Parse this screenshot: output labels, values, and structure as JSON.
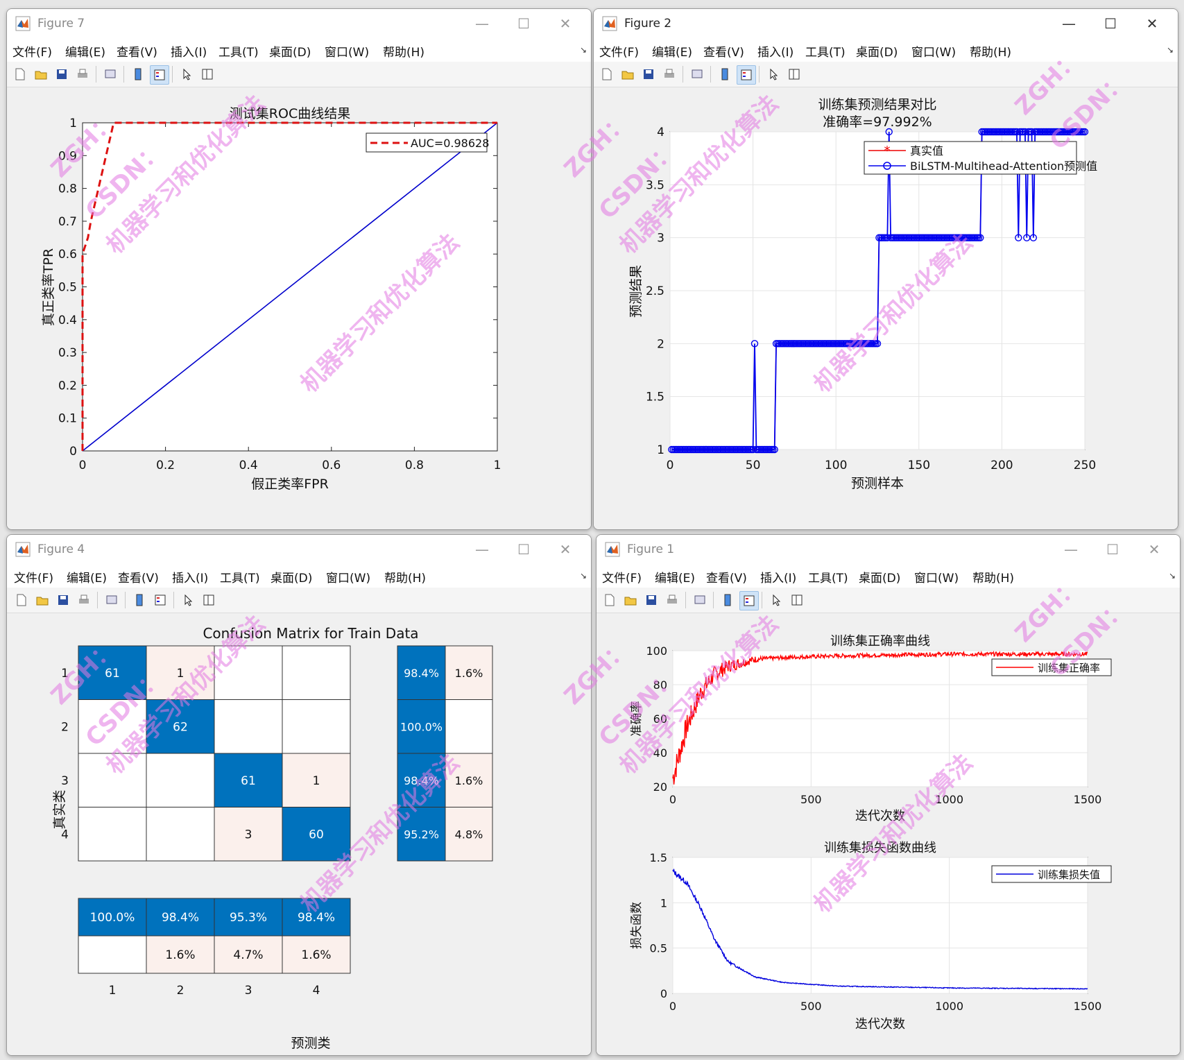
{
  "windows": {
    "fig7": {
      "title": "Figure 7",
      "menu": [
        "文件(F)",
        "编辑(E)",
        "查看(V)",
        "插入(I)",
        "工具(T)",
        "桌面(D)",
        "窗口(W)",
        "帮助(H)"
      ],
      "chart": {
        "title": "测试集ROC曲线结果",
        "xlabel": "假正类率FPR",
        "ylabel": "真正类率TPR",
        "legend": "AUC=0.98628",
        "xticks": [
          "0",
          "0.2",
          "0.4",
          "0.6",
          "0.8",
          "1"
        ],
        "yticks": [
          "0",
          "0.1",
          "0.2",
          "0.3",
          "0.4",
          "0.5",
          "0.6",
          "0.7",
          "0.8",
          "0.9",
          "1"
        ]
      }
    },
    "fig2": {
      "title": "Figure 2",
      "menu": [
        "文件(F)",
        "编辑(E)",
        "查看(V)",
        "插入(I)",
        "工具(T)",
        "桌面(D)",
        "窗口(W)",
        "帮助(H)"
      ],
      "chart": {
        "title_line1": "训练集预测结果对比",
        "title_line2": "准确率=97.992%",
        "xlabel": "预测样本",
        "ylabel": "预测结果",
        "legend": [
          "真实值",
          "BiLSTM-Multihead-Attention预测值"
        ],
        "xticks": [
          "0",
          "50",
          "100",
          "150",
          "200",
          "250"
        ],
        "yticks": [
          "1",
          "1.5",
          "2",
          "2.5",
          "3",
          "3.5",
          "4"
        ]
      }
    },
    "fig4": {
      "title": "Figure 4",
      "menu": [
        "文件(F)",
        "编辑(E)",
        "查看(V)",
        "插入(I)",
        "工具(T)",
        "桌面(D)",
        "窗口(W)",
        "帮助(H)"
      ],
      "chart": {
        "title": "Confusion Matrix for Train Data",
        "xlabel": "预测类",
        "ylabel": "真实类",
        "classes": [
          "1",
          "2",
          "3",
          "4"
        ],
        "row_summary": [
          [
            "98.4%",
            "1.6%"
          ],
          [
            "100.0%",
            ""
          ],
          [
            "98.4%",
            "1.6%"
          ],
          [
            "95.2%",
            "4.8%"
          ]
        ],
        "col_summary": [
          [
            "100.0%",
            ""
          ],
          [
            "98.4%",
            "1.6%"
          ],
          [
            "95.3%",
            "4.7%"
          ],
          [
            "98.4%",
            "1.6%"
          ]
        ]
      }
    },
    "fig1": {
      "title": "Figure 1",
      "menu": [
        "文件(F)",
        "编辑(E)",
        "查看(V)",
        "插入(I)",
        "工具(T)",
        "桌面(D)",
        "窗口(W)",
        "帮助(H)"
      ],
      "chart_top": {
        "title": "训练集正确率曲线",
        "xlabel": "迭代次数",
        "ylabel": "准确率",
        "legend": "训练集正确率",
        "xticks": [
          "0",
          "500",
          "1000",
          "1500"
        ],
        "yticks": [
          "20",
          "40",
          "60",
          "80",
          "100"
        ]
      },
      "chart_bottom": {
        "title": "训练集损失函数曲线",
        "xlabel": "迭代次数",
        "ylabel": "损失函数",
        "legend": "训练集损失值",
        "xticks": [
          "0",
          "500",
          "1000",
          "1500"
        ],
        "yticks": [
          "0",
          "0.5",
          "1",
          "1.5"
        ]
      }
    }
  },
  "colors": {
    "roc_random": "#0000cc",
    "roc_auc": "#dd1111",
    "pred": "#0000ee",
    "true": "#ee0000",
    "cm_dark": "#0072bd",
    "cm_light": "#fbf0ec",
    "acc": "#ff0000",
    "loss": "#0000dd"
  },
  "watermarks": [
    "机器学习和优化算法",
    "ZGH：",
    "CSDN："
  ],
  "chart_data": [
    {
      "type": "line",
      "title": "测试集ROC曲线结果",
      "xlabel": "假正类率FPR",
      "ylabel": "真正类率TPR",
      "xlim": [
        0,
        1
      ],
      "ylim": [
        0,
        1
      ],
      "series": [
        {
          "name": "AUC=0.98628",
          "style": "dashed",
          "x": [
            0,
            0,
            0,
            0.013,
            0.02,
            0.075,
            1
          ],
          "y": [
            0,
            0.5,
            0.6,
            0.65,
            0.7,
            1,
            1
          ]
        },
        {
          "x": [
            0,
            1
          ],
          "y": [
            0,
            1
          ]
        }
      ],
      "grid": false,
      "legend_position": "top-right"
    },
    {
      "type": "line",
      "title": "训练集预测结果对比 准确率=97.992%",
      "xlabel": "预测样本",
      "ylabel": "预测结果",
      "xlim": [
        0,
        250
      ],
      "ylim": [
        1,
        4
      ],
      "series": [
        {
          "name": "真实值",
          "segments": [
            [
              1,
              63,
              1
            ],
            [
              64,
              125,
              2
            ],
            [
              126,
              187,
              3
            ],
            [
              188,
              250,
              4
            ]
          ]
        },
        {
          "name": "BiLSTM-Multihead-Attention预测值",
          "outliers": [
            [
              51,
              2
            ],
            [
              132,
              4
            ],
            [
              210,
              3
            ],
            [
              215,
              3
            ],
            [
              219,
              3
            ]
          ]
        }
      ],
      "grid": true,
      "legend_position": "top-right"
    },
    {
      "type": "heatmap",
      "title": "Confusion Matrix for Train Data",
      "xlabel": "预测类",
      "ylabel": "真实类",
      "categories": [
        "1",
        "2",
        "3",
        "4"
      ],
      "matrix": [
        [
          61,
          1,
          0,
          0
        ],
        [
          0,
          62,
          0,
          0
        ],
        [
          0,
          0,
          61,
          1
        ],
        [
          0,
          0,
          3,
          60
        ]
      ]
    },
    {
      "type": "line",
      "title": "训练集正确率曲线",
      "xlabel": "迭代次数",
      "ylabel": "准确率",
      "xlim": [
        0,
        1500
      ],
      "ylim": [
        20,
        100
      ],
      "series": [
        {
          "name": "训练集正确率",
          "x": [
            0,
            50,
            100,
            150,
            200,
            300,
            400,
            600,
            1000,
            1500
          ],
          "y": [
            25,
            55,
            75,
            86,
            91,
            95,
            96,
            97,
            98,
            98
          ]
        }
      ],
      "grid": true,
      "legend_position": "top-right"
    },
    {
      "type": "line",
      "title": "训练集损失函数曲线",
      "xlabel": "迭代次数",
      "ylabel": "损失函数",
      "xlim": [
        0,
        1500
      ],
      "ylim": [
        0,
        1.5
      ],
      "series": [
        {
          "name": "训练集损失值",
          "x": [
            0,
            50,
            100,
            150,
            200,
            300,
            400,
            600,
            1000,
            1500
          ],
          "y": [
            1.35,
            1.22,
            0.95,
            0.6,
            0.35,
            0.18,
            0.12,
            0.08,
            0.06,
            0.05
          ]
        }
      ],
      "grid": true,
      "legend_position": "top-right"
    }
  ]
}
